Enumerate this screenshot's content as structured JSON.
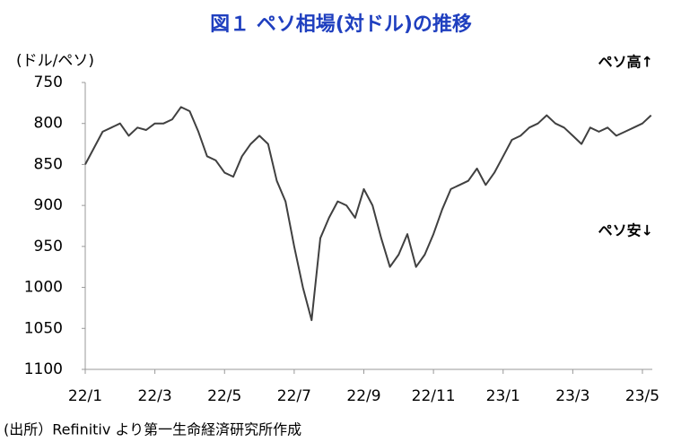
{
  "chart_data": {
    "type": "line",
    "title": "図１ ペソ相場(対ドル)の推移",
    "y_label": "(ドル/ペソ)",
    "annotations": [
      "ペソ高↑",
      "ペソ安↓"
    ],
    "source": "(出所）Refinitiv より第一生命経済研究所作成",
    "categories": [
      "22/1",
      null,
      null,
      null,
      null,
      null,
      null,
      null,
      "22/3",
      null,
      null,
      null,
      null,
      null,
      null,
      null,
      "22/5",
      null,
      null,
      null,
      null,
      null,
      null,
      null,
      "22/7",
      null,
      null,
      null,
      null,
      null,
      null,
      null,
      "22/9",
      null,
      null,
      null,
      null,
      null,
      null,
      null,
      "22/11",
      null,
      null,
      null,
      null,
      null,
      null,
      null,
      "23/1",
      null,
      null,
      null,
      null,
      null,
      null,
      null,
      "23/3",
      null,
      null,
      null,
      null,
      null,
      null,
      null,
      "23/5",
      null
    ],
    "values": [
      850,
      830,
      810,
      805,
      800,
      815,
      805,
      808,
      800,
      800,
      795,
      780,
      785,
      810,
      840,
      845,
      860,
      865,
      840,
      825,
      815,
      825,
      870,
      895,
      950,
      1000,
      1040,
      940,
      915,
      895,
      900,
      915,
      880,
      900,
      940,
      975,
      960,
      935,
      975,
      960,
      935,
      905,
      880,
      875,
      870,
      855,
      875,
      860,
      840,
      820,
      815,
      805,
      800,
      790,
      800,
      805,
      815,
      825,
      805,
      810,
      805,
      815,
      810,
      805,
      800,
      790
    ],
    "color": "#404040",
    "ylim": [
      1100,
      750
    ],
    "yticks": [
      750,
      800,
      850,
      900,
      950,
      1000,
      1050,
      1100
    ]
  }
}
